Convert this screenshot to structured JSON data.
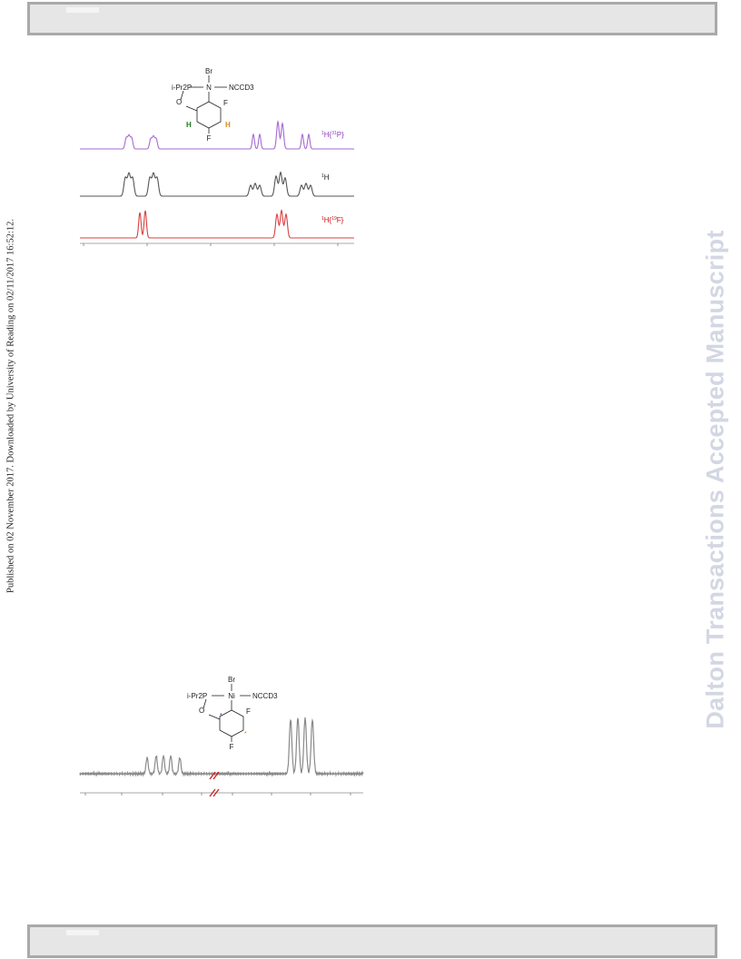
{
  "side_note": "Published on 02 November 2017. Downloaded by University of Reading on 02/11/2017 16:52:12.",
  "watermark": "Dalton Transactions Accepted Manuscript",
  "figure_top": {
    "structure": {
      "br": "Br",
      "ligand": "i-Pr2P",
      "metal": "N",
      "solvent": "NCCD3",
      "o": "O",
      "f_ortho": "F",
      "f_para": "F",
      "h_left": "H",
      "h_right": "H"
    },
    "traces": [
      {
        "label": "1H{31P}",
        "color": "#a66ad0"
      },
      {
        "label": "1H",
        "color": "#555555"
      },
      {
        "label": "1H{19F}",
        "color": "#d94040"
      }
    ],
    "label_colors": {
      "h_left": "#1a7a1a",
      "h_right": "#d98a10",
      "p_label": "#8a3fc0",
      "f_label": "#cc1010"
    }
  },
  "figure_bottom": {
    "structure": {
      "br": "Br",
      "ligand": "i-Pr2P",
      "metal": "Ni",
      "solvent": "NCCD3",
      "o": "O",
      "f_ortho": "F",
      "f_para": "F",
      "star_left": "*",
      "star_right": "*"
    },
    "trace_color": "#8a8a8a",
    "break_color": "#d02020"
  }
}
